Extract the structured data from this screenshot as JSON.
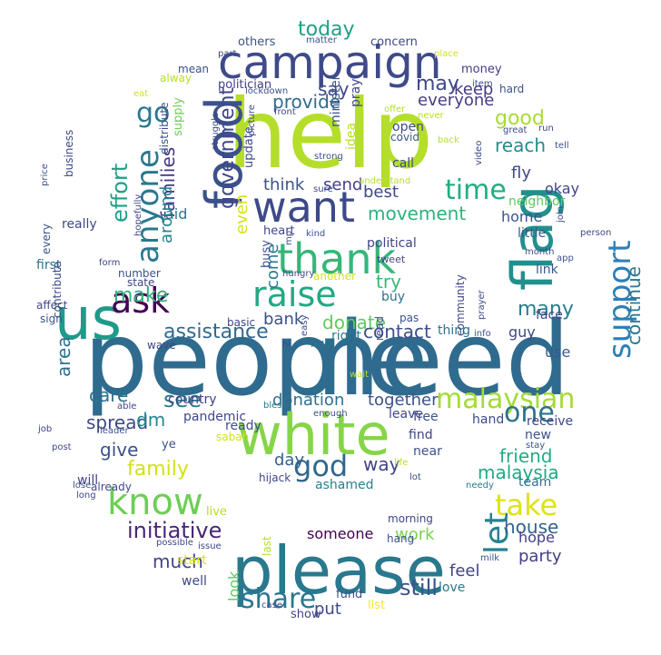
{
  "words": [
    {
      "t": "people",
      "c": "#2f6b8e"
    },
    {
      "t": "need",
      "c": "#2f6b8e"
    },
    {
      "t": "help",
      "c": "#b5de2b"
    },
    {
      "t": "please",
      "c": "#2a788e"
    },
    {
      "t": "white",
      "c": "#86d549"
    },
    {
      "t": "flag",
      "c": "#21908d"
    },
    {
      "t": "campaign",
      "c": "#3e4a89"
    },
    {
      "t": "food",
      "c": "#3b518b"
    },
    {
      "t": "us",
      "c": "#1f9a8a"
    },
    {
      "t": "want",
      "c": "#3e4989"
    },
    {
      "t": "thank",
      "c": "#35b779"
    },
    {
      "t": "raise",
      "c": "#22a884"
    },
    {
      "t": "know",
      "c": "#6ece58"
    },
    {
      "t": "ask",
      "c": "#440154"
    },
    {
      "t": "god",
      "c": "#31688e"
    },
    {
      "t": "support",
      "c": "#2c7fb8"
    },
    {
      "t": "malaysian",
      "c": "#a5db36"
    },
    {
      "t": "anyone",
      "c": "#2a788e"
    },
    {
      "t": "time",
      "c": "#25ac82"
    },
    {
      "t": "let",
      "c": "#26828e"
    },
    {
      "t": "one",
      "c": "#2c728e"
    },
    {
      "t": "share",
      "c": "#2a768e"
    },
    {
      "t": "take",
      "c": "#dde318"
    },
    {
      "t": "make",
      "c": "#2eb37c"
    },
    {
      "t": "go",
      "c": "#2a788e"
    },
    {
      "t": "effort",
      "c": "#1f9e89"
    },
    {
      "t": "government",
      "c": "#3f4788"
    },
    {
      "t": "families",
      "c": "#443983"
    },
    {
      "t": "initiative",
      "c": "#482677"
    },
    {
      "t": "still",
      "c": "#3b528b"
    },
    {
      "t": "work",
      "c": "#7ad151"
    },
    {
      "t": "house",
      "c": "#33628d"
    },
    {
      "t": "donate",
      "c": "#5ec962"
    },
    {
      "t": "assistance",
      "c": "#31688e"
    },
    {
      "t": "contact",
      "c": "#3d4d8a"
    },
    {
      "t": "give",
      "c": "#3b528b"
    },
    {
      "t": "spread",
      "c": "#3e4989"
    },
    {
      "t": "see",
      "c": "#2a788e"
    },
    {
      "t": "family",
      "c": "#d2e21b"
    },
    {
      "t": "care",
      "c": "#2d708e"
    },
    {
      "t": "area",
      "c": "#2c718e"
    },
    {
      "t": "dm",
      "c": "#23888e"
    },
    {
      "t": "much",
      "c": "#414487"
    },
    {
      "t": "continue",
      "c": "#2a788e"
    },
    {
      "t": "many",
      "c": "#287d8e"
    },
    {
      "t": "today",
      "c": "#1fa088"
    },
    {
      "t": "good",
      "c": "#a8db34"
    },
    {
      "t": "reach",
      "c": "#228c8d"
    },
    {
      "t": "say",
      "c": "#3f4889"
    },
    {
      "t": "may",
      "c": "#3f4788"
    },
    {
      "t": "keep",
      "c": "#443983"
    },
    {
      "t": "provide",
      "c": "#2f6c8e"
    },
    {
      "t": "everyone",
      "c": "#433e85"
    },
    {
      "t": "movement",
      "c": "#2db27d"
    },
    {
      "t": "think",
      "c": "#3b528b"
    },
    {
      "t": "send",
      "c": "#433e85"
    },
    {
      "t": "best",
      "c": "#3e4a89"
    },
    {
      "t": "come",
      "c": "#2a788e"
    },
    {
      "t": "even",
      "c": "#d8e219"
    },
    {
      "t": "around",
      "c": "#25858e"
    },
    {
      "t": "try",
      "c": "#3aba76"
    },
    {
      "t": "friend",
      "c": "#25ac82"
    },
    {
      "t": "malaysia",
      "c": "#22a785"
    },
    {
      "t": "together",
      "c": "#3b518b"
    },
    {
      "t": "donation",
      "c": "#2d708e"
    },
    {
      "t": "way",
      "c": "#414487"
    },
    {
      "t": "day",
      "c": "#35608d"
    },
    {
      "t": "someone",
      "c": "#440154"
    },
    {
      "t": "feel",
      "c": "#414487"
    },
    {
      "t": "put",
      "c": "#3f4788"
    },
    {
      "t": "look",
      "c": "#5ec962"
    },
    {
      "t": "party",
      "c": "#424086"
    },
    {
      "t": "hope",
      "c": "#433e85"
    },
    {
      "t": "bank",
      "c": "#3b518b"
    },
    {
      "t": "fly",
      "c": "#3e4989"
    },
    {
      "t": "aid",
      "c": "#2a788e"
    },
    {
      "t": "home",
      "c": "#3b528b"
    },
    {
      "t": "okay",
      "c": "#414487"
    },
    {
      "t": "use",
      "c": "#38598c"
    },
    {
      "t": "guy",
      "c": "#3f4889"
    },
    {
      "t": "buy",
      "c": "#2c728e"
    },
    {
      "t": "link",
      "c": "#38588c"
    },
    {
      "t": "right",
      "c": "#2a768e"
    },
    {
      "t": "face",
      "c": "#3e4989"
    },
    {
      "t": "thing",
      "c": "#2c728e"
    },
    {
      "t": "free",
      "c": "#3b528b"
    },
    {
      "t": "leave",
      "c": "#3f4788"
    },
    {
      "t": "find",
      "c": "#414487"
    },
    {
      "t": "near",
      "c": "#3b528b"
    },
    {
      "t": "ready",
      "c": "#3d4e8a"
    },
    {
      "t": "pandemic",
      "c": "#3f4889"
    },
    {
      "t": "country",
      "c": "#433e85"
    },
    {
      "t": "others",
      "c": "#3b528b"
    },
    {
      "t": "concern",
      "c": "#3f4788"
    },
    {
      "t": "politician",
      "c": "#433e85"
    },
    {
      "t": "open",
      "c": "#3e4a89"
    },
    {
      "t": "call",
      "c": "#3d4e8a"
    },
    {
      "t": "little",
      "c": "#38598c"
    },
    {
      "t": "neighbor",
      "c": "#5ec962"
    },
    {
      "t": "receive",
      "c": "#3f4788"
    },
    {
      "t": "hand",
      "c": "#3e4989"
    },
    {
      "t": "new",
      "c": "#3b528b"
    },
    {
      "t": "team",
      "c": "#2c728e"
    },
    {
      "t": "love",
      "c": "#2a788e"
    },
    {
      "t": "fund",
      "c": "#3b528b"
    },
    {
      "t": "show",
      "c": "#414487"
    },
    {
      "t": "list",
      "c": "#fde725"
    },
    {
      "t": "well",
      "c": "#3e4989"
    },
    {
      "t": "start",
      "c": "#d2e21b"
    },
    {
      "t": "ashamed",
      "c": "#26828e"
    },
    {
      "t": "live",
      "c": "#b5de2b"
    },
    {
      "t": "ye",
      "c": "#3b528b"
    },
    {
      "t": "will",
      "c": "#414487"
    },
    {
      "t": "really",
      "c": "#3e4a89"
    },
    {
      "t": "first",
      "c": "#2c728e"
    },
    {
      "t": "political",
      "c": "#3f4788"
    },
    {
      "t": "minister",
      "c": "#3b528b"
    },
    {
      "t": "update",
      "c": "#3e4989"
    },
    {
      "t": "money",
      "c": "#433e85"
    },
    {
      "t": "mean",
      "c": "#3b528b"
    },
    {
      "t": "alway",
      "c": "#b5de2b"
    },
    {
      "t": "supply",
      "c": "#6ece58"
    },
    {
      "t": "distribute",
      "c": "#3b528b"
    },
    {
      "t": "hard",
      "c": "#3b528b"
    },
    {
      "t": "pray",
      "c": "#3e4989"
    },
    {
      "t": "idea",
      "c": "#b5de2b"
    },
    {
      "t": "heart",
      "c": "#3f4788"
    },
    {
      "t": "busy",
      "c": "#3b528b"
    },
    {
      "t": "tweet",
      "c": "#414487"
    },
    {
      "t": "another",
      "c": "#d2e21b"
    },
    {
      "t": "hungry",
      "c": "#3e4989"
    },
    {
      "t": "ngo",
      "c": "#2c728e"
    },
    {
      "t": "basic",
      "c": "#3e4989"
    },
    {
      "t": "affect",
      "c": "#3f4788"
    },
    {
      "t": "sign",
      "c": "#3b528b"
    },
    {
      "t": "contribute",
      "c": "#3f4788"
    },
    {
      "t": "every",
      "c": "#3b528b"
    },
    {
      "t": "business",
      "c": "#3e4989"
    },
    {
      "t": "hopefully",
      "c": "#3f4788"
    },
    {
      "t": "state",
      "c": "#414487"
    },
    {
      "t": "number",
      "c": "#3b528b"
    },
    {
      "t": "wave",
      "c": "#3e4989"
    },
    {
      "t": "form",
      "c": "#3f4788"
    },
    {
      "t": "job",
      "c": "#414487"
    },
    {
      "t": "leader",
      "c": "#3b528b"
    },
    {
      "t": "post",
      "c": "#3e4989"
    },
    {
      "t": "able",
      "c": "#3f4788"
    },
    {
      "t": "lose",
      "c": "#3b528b"
    },
    {
      "t": "already",
      "c": "#3e4989"
    },
    {
      "t": "long",
      "c": "#414487"
    },
    {
      "t": "price",
      "c": "#3b528b"
    },
    {
      "t": "easy",
      "c": "#3e4989"
    },
    {
      "t": "hi",
      "c": "#3f4788"
    },
    {
      "t": "bless",
      "c": "#2a788e"
    },
    {
      "t": "enough",
      "c": "#3b528b"
    },
    {
      "t": "wait",
      "c": "#b5de2b"
    },
    {
      "t": "read",
      "c": "#3e4989"
    },
    {
      "t": "community",
      "c": "#3f4788"
    },
    {
      "t": "info",
      "c": "#3b528b"
    },
    {
      "t": "prayer",
      "c": "#3e4989"
    },
    {
      "t": "pas",
      "c": "#3b528b"
    },
    {
      "t": "sabah",
      "c": "#d2e21b"
    },
    {
      "t": "hijack",
      "c": "#3f4788"
    },
    {
      "t": "life",
      "c": "#b5de2b"
    },
    {
      "t": "lot",
      "c": "#3e4989"
    },
    {
      "t": "needy",
      "c": "#2a788e"
    },
    {
      "t": "stay",
      "c": "#3b528b"
    },
    {
      "t": "join",
      "c": "#3e4989"
    },
    {
      "t": "month",
      "c": "#3f4788"
    },
    {
      "t": "app",
      "c": "#3b528b"
    },
    {
      "t": "person",
      "c": "#3e4989"
    },
    {
      "t": "morning",
      "c": "#3f4788"
    },
    {
      "t": "hang",
      "c": "#3b528b"
    },
    {
      "t": "possible",
      "c": "#3e4989"
    },
    {
      "t": "issue",
      "c": "#3f4788"
    },
    {
      "t": "last",
      "c": "#b5de2b"
    },
    {
      "t": "milk",
      "c": "#3b528b"
    },
    {
      "t": "case",
      "c": "#3e4989"
    },
    {
      "t": "part",
      "c": "#3f4788"
    },
    {
      "t": "matter",
      "c": "#3b528b"
    },
    {
      "t": "place",
      "c": "#d2e21b"
    },
    {
      "t": "item",
      "c": "#3e4989"
    },
    {
      "t": "eat",
      "c": "#d2e21b"
    },
    {
      "t": "lockdown",
      "c": "#3b528b"
    },
    {
      "t": "front",
      "c": "#3e4989"
    },
    {
      "t": "offer",
      "c": "#b5de2b"
    },
    {
      "t": "never",
      "c": "#b5de2b"
    },
    {
      "t": "covid",
      "c": "#3b528b"
    },
    {
      "t": "back",
      "c": "#b5de2b"
    },
    {
      "t": "great",
      "c": "#3e4989"
    },
    {
      "t": "run",
      "c": "#3f4788"
    },
    {
      "t": "tell",
      "c": "#3b528b"
    },
    {
      "t": "picture",
      "c": "#3e4989"
    },
    {
      "t": "struggle",
      "c": "#3f4788"
    },
    {
      "t": "strong",
      "c": "#3b528b"
    },
    {
      "t": "sure",
      "c": "#3e4989"
    },
    {
      "t": "understand",
      "c": "#b5de2b"
    },
    {
      "t": "video",
      "c": "#3f4788"
    },
    {
      "t": "kind",
      "c": "#3b528b"
    },
    {
      "t": "mp",
      "c": "#3e4989"
    }
  ]
}
